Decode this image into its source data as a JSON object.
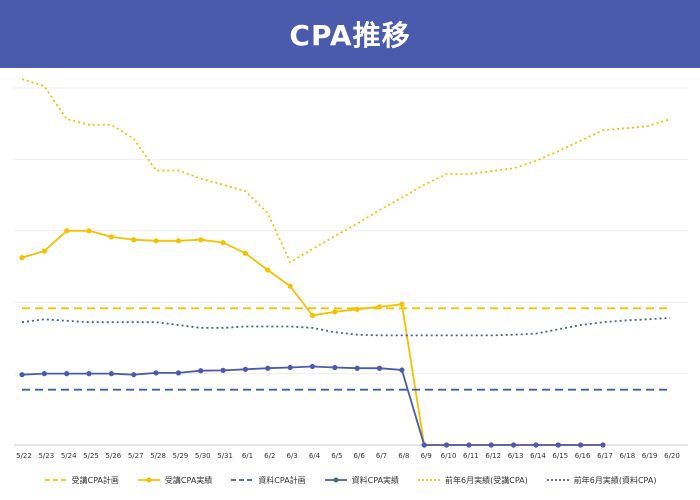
{
  "header": {
    "title": "CPA推移"
  },
  "colors": {
    "yellow": "#f5c200",
    "blue": "#4a5aad",
    "header_bg": "#4a5aad",
    "grid": "#eeeeee",
    "axis": "#cccccc"
  },
  "chart_data": {
    "type": "line",
    "title": "CPA推移",
    "xlabel": "",
    "ylabel": "",
    "y_axis_labels_shown": false,
    "categories": [
      "5/22",
      "5/23",
      "5/24",
      "5/25",
      "5/26",
      "5/27",
      "5/28",
      "5/29",
      "5/30",
      "5/31",
      "6/1",
      "6/2",
      "6/3",
      "6/4",
      "6/5",
      "6/6",
      "6/7",
      "6/8",
      "6/9",
      "6/10",
      "6/11",
      "6/12",
      "6/13",
      "6/14",
      "6/15",
      "6/16",
      "6/17",
      "6/18",
      "6/19",
      "6/20"
    ],
    "ylim": [
      0,
      100
    ],
    "grid": true,
    "legend_position": "bottom",
    "series": [
      {
        "name": "受講CPA計画",
        "style": "dashed",
        "color": "#f5c200",
        "marker": false,
        "values": [
          38.3,
          38.3,
          38.3,
          38.3,
          38.3,
          38.3,
          38.3,
          38.3,
          38.3,
          38.3,
          38.3,
          38.3,
          38.3,
          38.3,
          38.3,
          38.3,
          38.3,
          38.3,
          38.3,
          38.3,
          38.3,
          38.3,
          38.3,
          38.3,
          38.3,
          38.3,
          38.3,
          38.3,
          38.3,
          38.3
        ]
      },
      {
        "name": "受講CPA実績",
        "style": "solid",
        "color": "#f5c200",
        "marker": true,
        "values": [
          52.5,
          54.3,
          60.0,
          60.0,
          58.3,
          57.5,
          57.2,
          57.2,
          57.5,
          56.7,
          53.7,
          49.0,
          44.5,
          36.3,
          37.3,
          38.0,
          38.7,
          39.4,
          0,
          0,
          0,
          0,
          0,
          0,
          0,
          0,
          0,
          null,
          null,
          null
        ]
      },
      {
        "name": "資料CPA計画",
        "style": "dashed",
        "color": "#4a5aad",
        "marker": false,
        "values": [
          15.5,
          15.5,
          15.5,
          15.5,
          15.5,
          15.5,
          15.5,
          15.5,
          15.5,
          15.5,
          15.5,
          15.5,
          15.5,
          15.5,
          15.5,
          15.5,
          15.5,
          15.5,
          15.5,
          15.5,
          15.5,
          15.5,
          15.5,
          15.5,
          15.5,
          15.5,
          15.5,
          15.5,
          15.5,
          15.5
        ]
      },
      {
        "name": "資料CPA実績",
        "style": "solid",
        "color": "#4a5aad",
        "marker": true,
        "values": [
          19.7,
          20.0,
          20.0,
          20.0,
          20.0,
          19.7,
          20.2,
          20.2,
          20.8,
          20.9,
          21.2,
          21.5,
          21.7,
          22.0,
          21.7,
          21.5,
          21.5,
          21.0,
          0,
          0,
          0,
          0,
          0,
          0,
          0,
          0,
          0,
          null,
          null,
          null
        ]
      },
      {
        "name": "前年6月実績(受講CPA)",
        "style": "dotted",
        "color": "#f5c200",
        "marker": false,
        "values": [
          102.5,
          100.5,
          91.3,
          89.7,
          89.7,
          85.8,
          76.9,
          76.9,
          74.6,
          72.9,
          71.1,
          64.9,
          51.2,
          54.9,
          58.5,
          62.0,
          65.8,
          69.3,
          72.9,
          75.9,
          75.9,
          76.7,
          77.5,
          79.6,
          82.3,
          85.2,
          88.2,
          88.7,
          89.3,
          91.3
        ]
      },
      {
        "name": "前年6月実績(資料CPA)",
        "style": "dotted",
        "color": "#4a5aad",
        "marker": false,
        "values": [
          34.4,
          35.2,
          34.8,
          34.4,
          34.4,
          34.4,
          34.4,
          33.6,
          32.8,
          32.8,
          33.2,
          33.2,
          33.2,
          32.8,
          31.6,
          30.9,
          30.7,
          30.7,
          30.7,
          30.7,
          30.7,
          30.7,
          30.9,
          31.2,
          32.4,
          33.6,
          34.4,
          34.9,
          35.2,
          35.6
        ]
      }
    ]
  }
}
